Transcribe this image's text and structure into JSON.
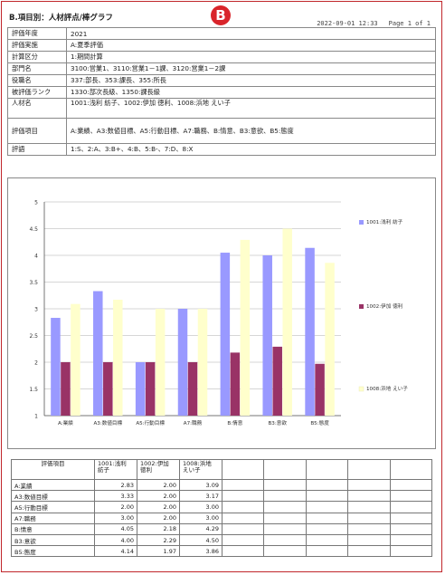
{
  "header": {
    "title": "B.項目別：人材評点/棒グラフ",
    "badge": "B",
    "datetime": "2022-09-01 12:33",
    "page": "Page 1 of 1"
  },
  "params": [
    {
      "key": "評価年度",
      "value": "2021"
    },
    {
      "key": "評価実施",
      "value": "A:夏季評価"
    },
    {
      "key": "計算区分",
      "value": "1:期間計算"
    },
    {
      "key": "部門名",
      "value": "3100:営業1、3110:営業1－1課、3120:営業1－2課"
    },
    {
      "key": "役職名",
      "value": "337:部長、353:課長、355:所長"
    },
    {
      "key": "被評価ランク",
      "value": "1330:部次長級、1350:課長級"
    },
    {
      "key": "人材名",
      "value": "1001:浅利 紡子、1002:伊加 徳利、1008:浜地 えい子"
    },
    {
      "key": "評価項目",
      "value": "A:業績、A3:数値目標、A5:行動目標、A7:職務、B:情意、B3:意欲、B5:態度"
    },
    {
      "key": "評語",
      "value": "1:S、2:A、3:B+、4:B、5:B-、7:D、8:X"
    }
  ],
  "chart_data": {
    "type": "bar",
    "categories": [
      "A:業績",
      "A3:数値目標",
      "A5:行動目標",
      "A7:職務",
      "B:情意",
      "B3:意欲",
      "B5:態度"
    ],
    "series": [
      {
        "name": "1001:浅利 紡子",
        "color": "#9999ff",
        "values": [
          2.83,
          3.33,
          2.0,
          3.0,
          4.05,
          4.0,
          4.14
        ]
      },
      {
        "name": "1002:伊加 徳利",
        "color": "#993366",
        "values": [
          2.0,
          2.0,
          2.0,
          2.0,
          2.18,
          2.29,
          1.97
        ]
      },
      {
        "name": "1008:浜地 えい子",
        "color": "#ffffcc",
        "values": [
          3.09,
          3.17,
          3.0,
          3.0,
          4.29,
          4.5,
          3.86
        ]
      }
    ],
    "ylim": [
      1,
      5
    ],
    "yticks": [
      "1",
      "1.5",
      "2",
      "2.5",
      "3",
      "3.5",
      "4",
      "4.5",
      "5"
    ],
    "grid": true,
    "legend": "right"
  },
  "table": {
    "headers": [
      "評価項目",
      "1001:浅利 紡子",
      "1002:伊加 徳利",
      "1008:浜地 えい子"
    ],
    "rows": [
      [
        "A:業績",
        "2.83",
        "2.00",
        "3.09"
      ],
      [
        "A3:数値目標",
        "3.33",
        "2.00",
        "3.17"
      ],
      [
        "A5:行動目標",
        "2.00",
        "2.00",
        "3.00"
      ],
      [
        "A7:職務",
        "3.00",
        "2.00",
        "3.00"
      ],
      [
        "B:情意",
        "4.05",
        "2.18",
        "4.29"
      ],
      [
        "B3:意欲",
        "4.00",
        "2.29",
        "4.50"
      ],
      [
        "B5:態度",
        "4.14",
        "1.97",
        "3.86"
      ]
    ]
  }
}
